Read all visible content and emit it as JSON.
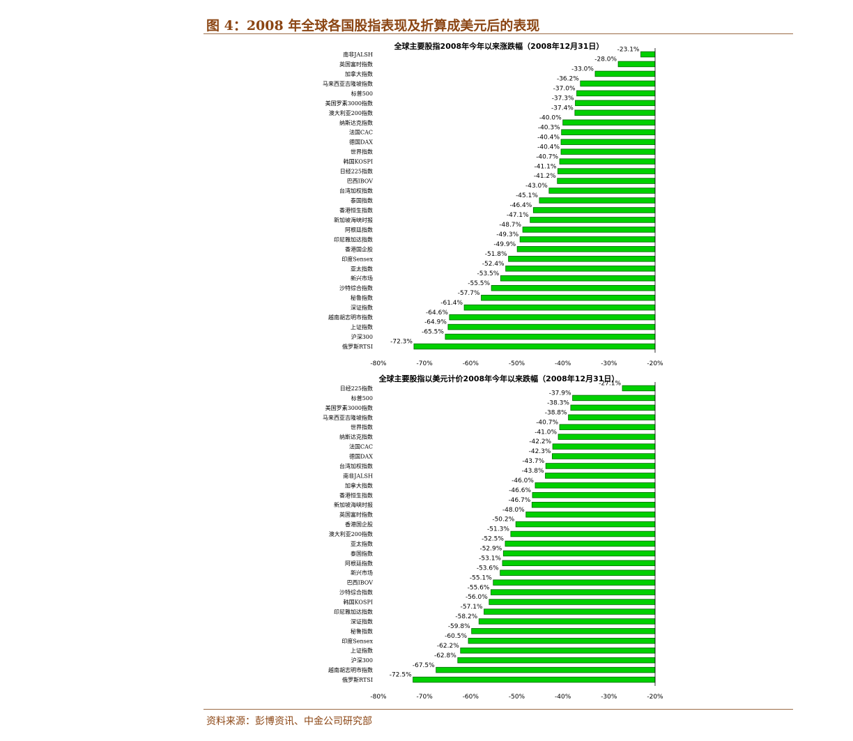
{
  "figure": {
    "title": "图 4：2008 年全球各国股指表现及折算成美元后的表现",
    "source": "资料来源：彭博资讯、中金公司研究部"
  },
  "colors": {
    "bar": "#00d000",
    "bar_edge": "#006600",
    "rule": "#9a6b45",
    "title": "#8b4513"
  },
  "chart_data": [
    {
      "type": "bar",
      "orientation": "horizontal",
      "title": "全球主要股指2008年今年以来涨跌幅（2008年12月31日）",
      "categories": [
        "南非JALSH",
        "英国富时指数",
        "加拿大指数",
        "马来西亚吉隆坡指数",
        "标普500",
        "美国罗素3000指数",
        "澳大利亚200指数",
        "纳斯达克指数",
        "法国CAC",
        "德国DAX",
        "世界指数",
        "韩国KOSPI",
        "日经225指数",
        "巴西IBOV",
        "台湾加权指数",
        "泰国指数",
        "香港恒生指数",
        "新加坡海峡时报",
        "阿根廷指数",
        "印尼雅加达指数",
        "香港国企股",
        "印度Sensex",
        "亚太指数",
        "新兴市场",
        "沙特综合指数",
        "秘鲁指数",
        "深证指数",
        "越南胡志明市指数",
        "上证指数",
        "沪深300",
        "俄罗斯RTSI"
      ],
      "values": [
        -23.1,
        -28.0,
        -33.0,
        -36.2,
        -37.0,
        -37.3,
        -37.4,
        -40.0,
        -40.3,
        -40.4,
        -40.4,
        -40.7,
        -41.1,
        -41.2,
        -43.0,
        -45.1,
        -46.4,
        -47.1,
        -48.7,
        -49.3,
        -49.9,
        -51.8,
        -52.4,
        -53.5,
        -55.5,
        -57.7,
        -61.4,
        -64.6,
        -64.9,
        -65.5,
        -72.3
      ],
      "value_labels": [
        "-23.1%",
        "-28.0%",
        "-33.0%",
        "-36.2%",
        "-37.0%",
        "-37.3%",
        "-37.4%",
        "-40.0%",
        "-40.3%",
        "-40.4%",
        "-40.4%",
        "-40.7%",
        "-41.1%",
        "-41.2%",
        "-43.0%",
        "-45.1%",
        "-46.4%",
        "-47.1%",
        "-48.7%",
        "-49.3%",
        "-49.9%",
        "-51.8%",
        "-52.4%",
        "-53.5%",
        "-55.5%",
        "-57.7%",
        "-61.4%",
        "-64.6%",
        "-64.9%",
        "-65.5%",
        "-72.3%"
      ],
      "xlim": [
        -80,
        -20
      ],
      "xticks": [
        -80,
        -70,
        -60,
        -50,
        -40,
        -30,
        -20
      ],
      "xtick_labels": [
        "-80%",
        "-70%",
        "-60%",
        "-50%",
        "-40%",
        "-30%",
        "-20%"
      ],
      "unit": "%",
      "grid": false
    },
    {
      "type": "bar",
      "orientation": "horizontal",
      "title": "全球主要股指以美元计价2008年今年以来跌幅（2008年12月31日）",
      "categories": [
        "日经225指数",
        "标普500",
        "美国罗素3000指数",
        "马来西亚吉隆坡指数",
        "世界指数",
        "纳斯达克指数",
        "法国CAC",
        "德国DAX",
        "台湾加权指数",
        "南非JALSH",
        "加拿大指数",
        "香港恒生指数",
        "新加坡海峡时报",
        "英国富时指数",
        "香港国企股",
        "澳大利亚200指数",
        "亚太指数",
        "泰国指数",
        "阿根廷指数",
        "新兴市场",
        "巴西IBOV",
        "沙特综合指数",
        "韩国KOSPI",
        "印尼雅加达指数",
        "深证指数",
        "秘鲁指数",
        "印度Sensex",
        "上证指数",
        "沪深300",
        "越南胡志明市指数",
        "俄罗斯RTSI"
      ],
      "values": [
        -27.1,
        -37.9,
        -38.3,
        -38.8,
        -40.7,
        -41.0,
        -42.2,
        -42.3,
        -43.7,
        -43.8,
        -46.0,
        -46.6,
        -46.7,
        -48.0,
        -50.2,
        -51.3,
        -52.5,
        -52.9,
        -53.1,
        -53.6,
        -55.1,
        -55.6,
        -56.0,
        -57.1,
        -58.2,
        -59.8,
        -60.5,
        -62.2,
        -62.8,
        -67.5,
        -72.5
      ],
      "value_labels": [
        "-27.1%",
        "-37.9%",
        "-38.3%",
        "-38.8%",
        "-40.7%",
        "-41.0%",
        "-42.2%",
        "-42.3%",
        "-43.7%",
        "-43.8%",
        "-46.0%",
        "-46.6%",
        "-46.7%",
        "-48.0%",
        "-50.2%",
        "-51.3%",
        "-52.5%",
        "-52.9%",
        "-53.1%",
        "-53.6%",
        "-55.1%",
        "-55.6%",
        "-56.0%",
        "-57.1%",
        "-58.2%",
        "-59.8%",
        "-60.5%",
        "-62.2%",
        "-62.8%",
        "-67.5%",
        "-72.5%"
      ],
      "xlim": [
        -80,
        -20
      ],
      "xticks": [
        -80,
        -70,
        -60,
        -50,
        -40,
        -30,
        -20
      ],
      "xtick_labels": [
        "-80%",
        "-70%",
        "-60%",
        "-50%",
        "-40%",
        "-30%",
        "-20%"
      ],
      "unit": "%",
      "grid": false
    }
  ]
}
